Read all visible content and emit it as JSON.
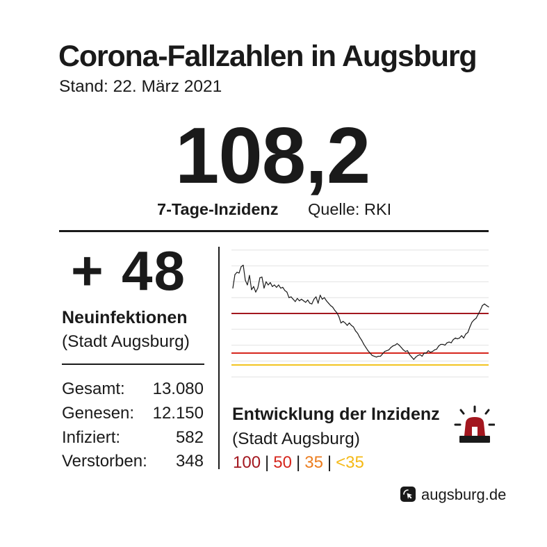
{
  "header": {
    "title": "Corona-Fallzahlen in Augsburg",
    "date": "Stand: 22. März 2021"
  },
  "headline": {
    "value": "108,2",
    "label": "7-Tage-Inzidenz",
    "source": "Quelle: RKI"
  },
  "new_cases": {
    "value": "+ 48",
    "label": "Neuinfektionen",
    "scope": "(Stadt Augsburg)"
  },
  "stats": [
    {
      "label": "Gesamt:",
      "value": "13.080"
    },
    {
      "label": "Genesen:",
      "value": "12.150"
    },
    {
      "label": "Infiziert:",
      "value": "582"
    },
    {
      "label": "Verstorben:",
      "value": "348"
    }
  ],
  "chart_caption": {
    "title": "Entwicklung der Inzidenz",
    "scope": "(Stadt Augsburg)",
    "separator": "|",
    "legend": [
      {
        "label": "100",
        "color": "#a3171f"
      },
      {
        "label": "50",
        "color": "#d6261d"
      },
      {
        "label": "35",
        "color": "#ec7d1f"
      },
      {
        "label": "<35",
        "color": "#f5b916"
      }
    ],
    "icon": "siren-icon"
  },
  "chart_data": {
    "type": "line",
    "ylim": [
      20,
      180
    ],
    "grid": true,
    "y_gridlines": [
      20,
      40,
      60,
      80,
      100,
      120,
      140,
      160,
      180
    ],
    "reference_lines": [
      {
        "value": 100,
        "color": "#a3171f"
      },
      {
        "value": 50,
        "color": "#d6261d"
      },
      {
        "value": 35,
        "color": "#f2c21a"
      }
    ],
    "series": [
      {
        "color": "#1a1a1a",
        "values": [
          132,
          149,
          152,
          151,
          159,
          161,
          142,
          136,
          148,
          130,
          134,
          127,
          132,
          145,
          146,
          132,
          140,
          136,
          139,
          134,
          136,
          133,
          136,
          132,
          133,
          129,
          127,
          120,
          121,
          118,
          115,
          119,
          116,
          118,
          116,
          114,
          117,
          113,
          112,
          118,
          121,
          113,
          123,
          118,
          120,
          116,
          113,
          110,
          108,
          104,
          101,
          96,
          88,
          90,
          88,
          85,
          88,
          85,
          83,
          78,
          75,
          70,
          66,
          61,
          57,
          53,
          50,
          47,
          46,
          45,
          46,
          46,
          49,
          52,
          53,
          54,
          57,
          59,
          60,
          62,
          60,
          57,
          54,
          52,
          53,
          48,
          45,
          42,
          45,
          47,
          48,
          46,
          50,
          50,
          53,
          51,
          52,
          54,
          55,
          59,
          61,
          61,
          60,
          63,
          64,
          63,
          67,
          69,
          68,
          69,
          72,
          69,
          74,
          76,
          83,
          89,
          92,
          94,
          99,
          104,
          110,
          112,
          110,
          108.2
        ]
      }
    ]
  },
  "footer": {
    "brand": "augsburg.de",
    "icon": "cursor-icon"
  }
}
